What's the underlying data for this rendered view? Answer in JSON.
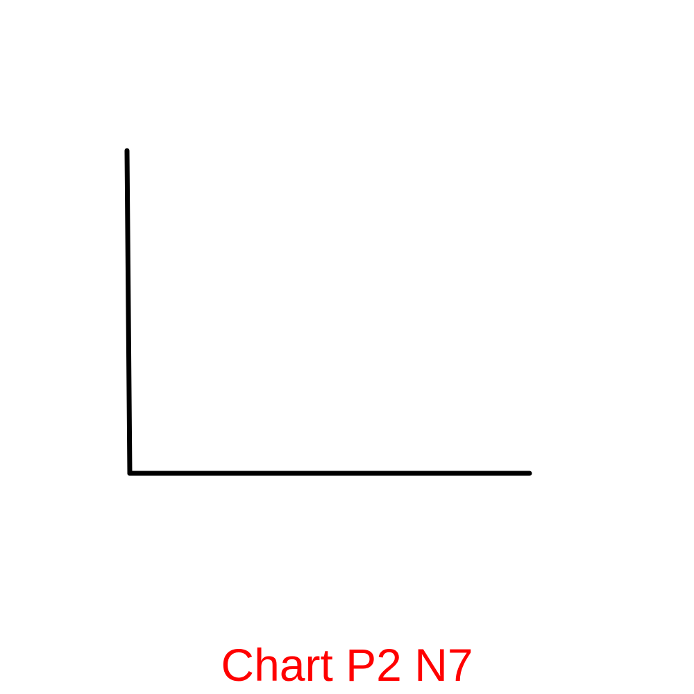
{
  "caption": {
    "text": "Chart P2 N7",
    "color": "#ff0000"
  },
  "chart_data": {
    "type": "line",
    "title": "",
    "xlabel": "",
    "ylabel": "",
    "categories": [],
    "series": [],
    "grid": false,
    "legend": "none",
    "axis_color": "#000000"
  }
}
